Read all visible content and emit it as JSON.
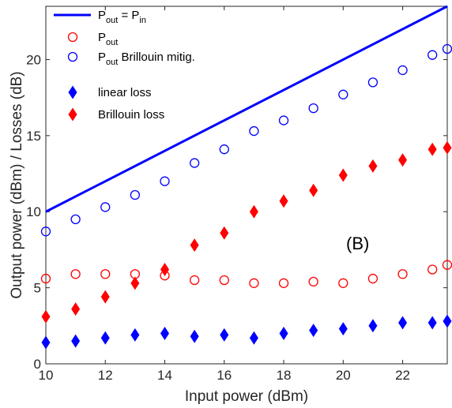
{
  "chart_data": {
    "type": "scatter",
    "xlabel": "Input power (dBm)",
    "ylabel": "Output power (dBm) / Losses (dB)",
    "xlim": [
      10,
      23.5
    ],
    "ylim": [
      0,
      23.5
    ],
    "xticks": [
      10,
      12,
      14,
      16,
      18,
      20,
      22
    ],
    "yticks": [
      0,
      5,
      10,
      15,
      20
    ],
    "annotation": "(B)",
    "legend": {
      "placement": "top-left",
      "items": [
        {
          "key": "pin_line",
          "main": "P",
          "sub": "out",
          "mid": " = P",
          "sub2": "in",
          "rest": ""
        },
        {
          "key": "pout",
          "main": "P",
          "sub": "out",
          "mid": "",
          "sub2": "",
          "rest": ""
        },
        {
          "key": "pout_brill",
          "main": "P",
          "sub": "out",
          "mid": " Brillouin mitig.",
          "sub2": "",
          "rest": ""
        },
        {
          "key": "linear_loss",
          "main": "linear loss",
          "sub": "",
          "mid": "",
          "sub2": "",
          "rest": ""
        },
        {
          "key": "brill_loss",
          "main": "Brillouin loss",
          "sub": "",
          "mid": "",
          "sub2": "",
          "rest": ""
        }
      ]
    },
    "series": [
      {
        "key": "pin_line",
        "kind": "line",
        "color": "#0000ff",
        "x": [
          10,
          23.5
        ],
        "y": [
          10,
          23.5
        ]
      },
      {
        "key": "pout",
        "kind": "open-circle",
        "color": "#ff0000",
        "x": [
          10,
          11,
          12,
          13,
          14,
          15,
          16,
          17,
          18,
          19,
          20,
          21,
          22,
          23,
          23.5
        ],
        "y": [
          5.6,
          5.9,
          5.9,
          5.9,
          5.8,
          5.5,
          5.5,
          5.3,
          5.3,
          5.4,
          5.3,
          5.6,
          5.9,
          6.2,
          6.5
        ]
      },
      {
        "key": "pout_brill",
        "kind": "open-circle",
        "color": "#0000ff",
        "x": [
          10,
          11,
          12,
          13,
          14,
          15,
          16,
          17,
          18,
          19,
          20,
          21,
          22,
          23,
          23.5
        ],
        "y": [
          8.7,
          9.5,
          10.3,
          11.1,
          12.0,
          13.2,
          14.1,
          15.3,
          16.0,
          16.8,
          17.7,
          18.5,
          19.3,
          20.3,
          20.7
        ]
      },
      {
        "key": "linear_loss",
        "kind": "diamond",
        "color": "#0000ff",
        "x": [
          10,
          11,
          12,
          13,
          14,
          15,
          16,
          17,
          18,
          19,
          20,
          21,
          22,
          23,
          23.5
        ],
        "y": [
          1.4,
          1.5,
          1.7,
          1.9,
          2.0,
          1.8,
          1.9,
          1.7,
          2.0,
          2.2,
          2.3,
          2.5,
          2.7,
          2.7,
          2.8
        ]
      },
      {
        "key": "brill_loss",
        "kind": "diamond",
        "color": "#ff0000",
        "x": [
          10,
          11,
          12,
          13,
          14,
          15,
          16,
          17,
          18,
          19,
          20,
          21,
          22,
          23,
          23.5
        ],
        "y": [
          3.1,
          3.6,
          4.4,
          5.3,
          6.2,
          7.8,
          8.6,
          10.0,
          10.7,
          11.4,
          12.4,
          13.0,
          13.4,
          14.1,
          14.2
        ]
      }
    ]
  }
}
